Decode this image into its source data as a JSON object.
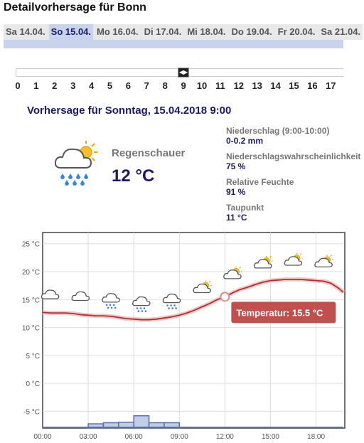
{
  "header": {
    "title": "Detailvorhersage für Bonn"
  },
  "tabs": [
    {
      "label": "Sa 14.04.",
      "active": false
    },
    {
      "label": "So 15.04.",
      "active": true
    },
    {
      "label": "Mo 16.04.",
      "active": false
    },
    {
      "label": "Di 17.04.",
      "active": false
    },
    {
      "label": "Mi 18.04.",
      "active": false
    },
    {
      "label": "Do 19.04.",
      "active": false
    },
    {
      "label": "Fr 20.04.",
      "active": false
    },
    {
      "label": "Sa 21.04.",
      "active": false
    }
  ],
  "slider": {
    "selected_hour": 9,
    "hours": [
      "0",
      "1",
      "2",
      "3",
      "4",
      "5",
      "6",
      "7",
      "8",
      "9",
      "10",
      "11",
      "12",
      "13",
      "14",
      "15",
      "16",
      "17"
    ]
  },
  "forecast": {
    "title": "Vorhersage für Sonntag, 15.04.2018 9:00",
    "condition": "Regenschauer",
    "temperature": "12 °C",
    "icon": "sun-cloud-rain-icon"
  },
  "details": [
    {
      "label": "Niederschlag (9:00-10:00)",
      "value": "0-0.2 mm"
    },
    {
      "label": "Niederschlagswahrscheinlichkeit",
      "value": "75 %"
    },
    {
      "label": "Relative Feuchte",
      "value": "91 %"
    },
    {
      "label": "Taupunkt",
      "value": "11 °C"
    }
  ],
  "chart_data": {
    "type": "line",
    "x_ticks": [
      "00:00",
      "03:00",
      "06:00",
      "09:00",
      "12:00",
      "15:00",
      "18:00"
    ],
    "y_ticks": [
      "25 °C",
      "20 °C",
      "15 °C",
      "10 °C",
      "5 °C",
      "0 °C",
      "-5 °C"
    ],
    "ylim": [
      -8,
      27
    ],
    "xlim": [
      0,
      19.8
    ],
    "grid": true,
    "temperature": {
      "x": [
        0,
        0.5,
        1,
        1.5,
        2,
        2.5,
        3,
        3.5,
        4,
        4.5,
        5,
        5.5,
        6,
        6.5,
        7,
        7.5,
        8,
        8.5,
        9,
        9.5,
        10,
        10.5,
        11,
        11.5,
        12,
        12.5,
        13,
        13.5,
        14,
        14.5,
        15,
        15.5,
        16,
        16.5,
        17,
        17.5,
        18,
        18.5,
        19,
        19.5,
        19.8
      ],
      "y": [
        12.7,
        12.6,
        12.6,
        12.6,
        12.5,
        12.3,
        12.2,
        12.1,
        12.1,
        12.0,
        11.8,
        11.6,
        11.5,
        11.4,
        11.4,
        11.5,
        11.7,
        11.9,
        12.2,
        12.6,
        13.1,
        13.7,
        14.3,
        15.0,
        15.5,
        16.2,
        16.8,
        17.2,
        17.7,
        18.1,
        18.4,
        18.5,
        18.6,
        18.6,
        18.6,
        18.5,
        18.4,
        18.3,
        17.9,
        17.0,
        16.3
      ]
    },
    "precipitation": {
      "x": [
        3,
        4,
        5,
        6,
        7,
        8
      ],
      "mm": [
        0.8,
        1.0,
        1.1,
        2.3,
        1.0,
        1.0
      ]
    },
    "icons": [
      {
        "x": 0.5,
        "name": "cloud-icon"
      },
      {
        "x": 2.5,
        "name": "cloud-icon"
      },
      {
        "x": 4.5,
        "name": "cloud-rain-icon"
      },
      {
        "x": 6.5,
        "name": "cloud-rain-icon"
      },
      {
        "x": 8.5,
        "name": "cloud-rain-icon"
      },
      {
        "x": 10.5,
        "name": "sun-cloud-icon"
      },
      {
        "x": 12.5,
        "name": "sun-cloud-icon"
      },
      {
        "x": 14.5,
        "name": "sun-cloud-icon"
      },
      {
        "x": 16.5,
        "name": "sun-cloud-icon"
      },
      {
        "x": 18.5,
        "name": "sun-cloud-icon"
      }
    ],
    "tooltip": {
      "label": "Temperatur: 15.5 °C",
      "x": 12,
      "y": 15.5
    },
    "colors": {
      "line": "#b03030",
      "halo": "#f2c8c8",
      "bars": "#c4cde8",
      "bar_border": "#5a6fa8",
      "tooltip": "#c0504d"
    }
  }
}
